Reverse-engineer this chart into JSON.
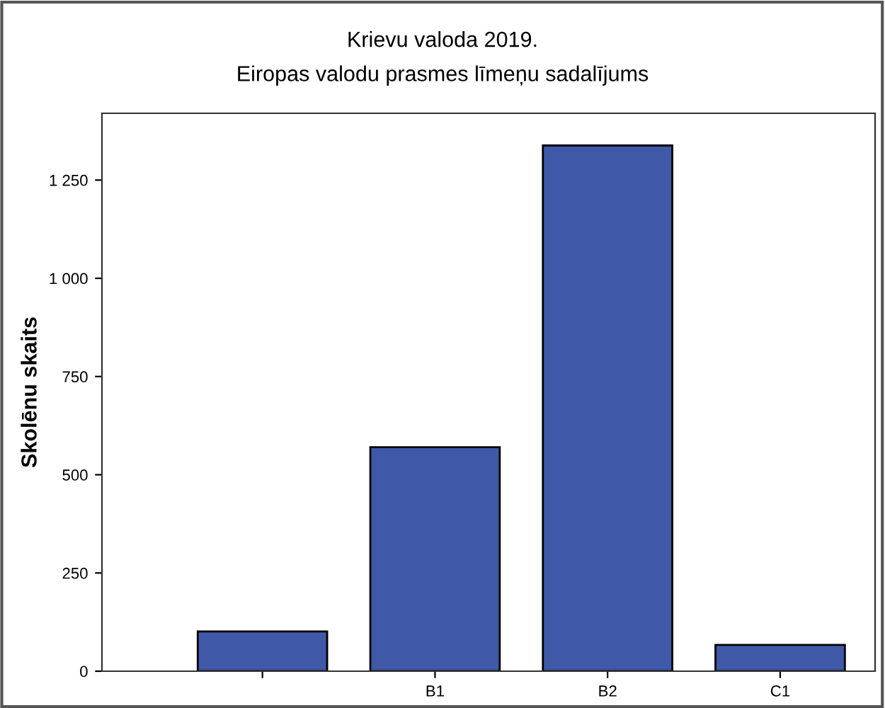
{
  "chart_data": {
    "type": "bar",
    "title": "Krievu valoda 2019.\nEiropas valodu prasmes līmeņu sadalījums",
    "ylabel": "Skolēnu skaits",
    "categories": [
      null,
      "B1",
      "B2",
      "C1"
    ],
    "values": [
      101,
      570,
      1338,
      67
    ],
    "color": "#3f58a8",
    "ylim": [
      0,
      1420
    ],
    "yticks": [
      0,
      {
        "value": 250,
        "label": "250"
      },
      {
        "value": 500,
        "label": "500"
      },
      {
        "value": 750,
        "label": "750"
      },
      {
        "value": 1000,
        "label": "1 000"
      },
      {
        "value": 1250,
        "label": "1 250"
      }
    ],
    "grid": false
  }
}
